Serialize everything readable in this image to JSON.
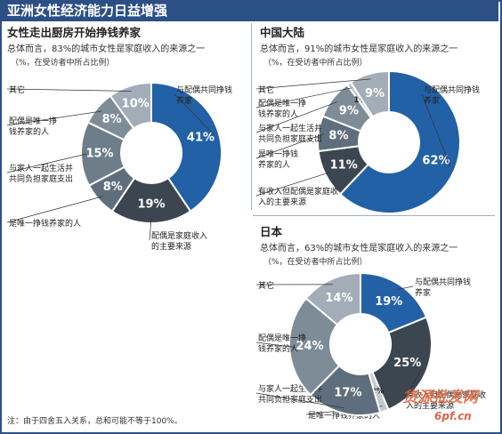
{
  "header": {
    "title": "亚洲女性经济能力日益增强"
  },
  "footnote": "注：由于四舍五入关系，总和可能不等于100%。",
  "watermark": {
    "text": "货源批发网",
    "url": "6pf.cn"
  },
  "colors": {
    "dark_blue": "#2361a6",
    "charcoal": "#3c4650",
    "slate": "#5f6e7c",
    "gray": "#7e8c98",
    "light_gray": "#a2adb7",
    "frame_blue": "#2c4f86"
  },
  "chart_data": [
    {
      "type": "donut",
      "title": "女性走出厨房开始挣钱养家",
      "subtitle": "总体而言，83%的城市女性是家庭收入的来源之一",
      "note": "（%，在受访者中所占比例）",
      "series": [
        {
          "label": "与配偶共同挣钱养家",
          "value": 41,
          "value_label": "41%",
          "color": "#2361a6"
        },
        {
          "label": "配偶是家庭收入的主要来源",
          "value": 19,
          "value_label": "19%",
          "color": "#3c4650"
        },
        {
          "label": "是唯一挣钱养家的人",
          "value": 8,
          "value_label": "8%",
          "color": "#5f6e7c"
        },
        {
          "label": "与家人一起生活并共同负担家庭支出",
          "value": 15,
          "value_label": "15%",
          "color": "#6e7d8a"
        },
        {
          "label": "配偶是唯一挣钱养家的人",
          "value": 8,
          "value_label": "8%",
          "color": "#7e8c98"
        },
        {
          "label": "其它",
          "value": 10,
          "value_label": "10%",
          "color": "#a2adb7"
        }
      ]
    },
    {
      "type": "donut",
      "title": "中国大陆",
      "subtitle": "总体而言，91%的城市女性是家庭收入的来源之一",
      "note": "（%，在受访者中所占比例）",
      "series": [
        {
          "label": "与配偶共同挣钱养家",
          "value": 62,
          "value_label": "62%",
          "color": "#2361a6"
        },
        {
          "label": "有收入但配偶是家庭收入的主要来源",
          "value": 11,
          "value_label": "11%",
          "color": "#3c4650"
        },
        {
          "label": "是唯一挣钱养家的人",
          "value": 8,
          "value_label": "8%",
          "color": "#5f6e7c"
        },
        {
          "label": "与家人一起生活并共同负担家庭支出",
          "value": 9,
          "value_label": "9%",
          "color": "#7e8c98"
        },
        {
          "label": "配偶是唯一挣钱养家的人",
          "value": 1,
          "value_label": "1%",
          "color": "#c2c9cf"
        },
        {
          "label": "其它",
          "value": 9,
          "value_label": "9%",
          "color": "#a2adb7"
        }
      ]
    },
    {
      "type": "donut",
      "title": "日本",
      "subtitle": "总体而言，63%的城市女性是家庭收入的来源之一",
      "note": "（%，在受访者中所占比例）",
      "series": [
        {
          "label": "与配偶共同挣钱养家",
          "value": 19,
          "value_label": "19%",
          "color": "#2361a6"
        },
        {
          "label": "有收入但配偶是家庭收入的主要来源",
          "value": 25,
          "value_label": "25%",
          "color": "#3c4650"
        },
        {
          "label": "是唯一挣钱养家的人",
          "value": 2,
          "value_label": "2%",
          "color": "#c2c9cf"
        },
        {
          "label": "与家人一起生活并共同负担家庭支出",
          "value": 17,
          "value_label": "17%",
          "color": "#5f6e7c"
        },
        {
          "label": "配偶是唯一挣钱养家的人",
          "value": 24,
          "value_label": "24%",
          "color": "#7e8c98"
        },
        {
          "label": "其它",
          "value": 14,
          "value_label": "14%",
          "color": "#a2adb7"
        }
      ]
    }
  ]
}
